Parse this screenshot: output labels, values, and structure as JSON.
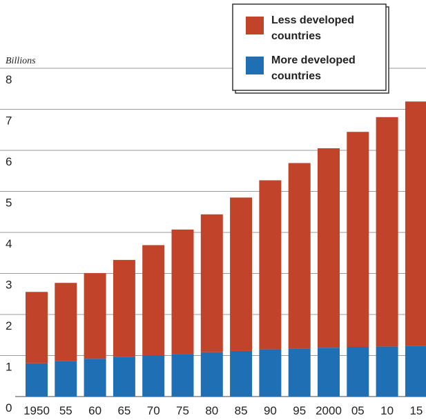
{
  "chart_data": {
    "type": "bar",
    "stacked": true,
    "ylabel": "Billions",
    "ylim": [
      0,
      8
    ],
    "yticks": [
      "0",
      "1",
      "2",
      "3",
      "4",
      "5",
      "6",
      "7",
      "8"
    ],
    "categories": [
      "1950",
      "55",
      "60",
      "65",
      "70",
      "75",
      "80",
      "85",
      "90",
      "95",
      "2000",
      "05",
      "10",
      "15"
    ],
    "series": [
      {
        "name": "More developed countries",
        "color": "#1f6fb5",
        "values": [
          0.81,
          0.86,
          0.92,
          0.97,
          1.0,
          1.04,
          1.08,
          1.11,
          1.15,
          1.17,
          1.19,
          1.21,
          1.22,
          1.24
        ]
      },
      {
        "name": "Less developed countries",
        "color": "#c0432a",
        "values": [
          1.74,
          1.91,
          2.09,
          2.36,
          2.69,
          3.03,
          3.36,
          3.74,
          4.12,
          4.52,
          4.86,
          5.24,
          5.59,
          5.95
        ]
      }
    ],
    "legend": {
      "position": "top-right",
      "items": [
        {
          "label": "Less developed countries",
          "color": "#c0432a"
        },
        {
          "label": "More developed countries",
          "color": "#1f6fb5"
        }
      ]
    },
    "grid": true
  }
}
